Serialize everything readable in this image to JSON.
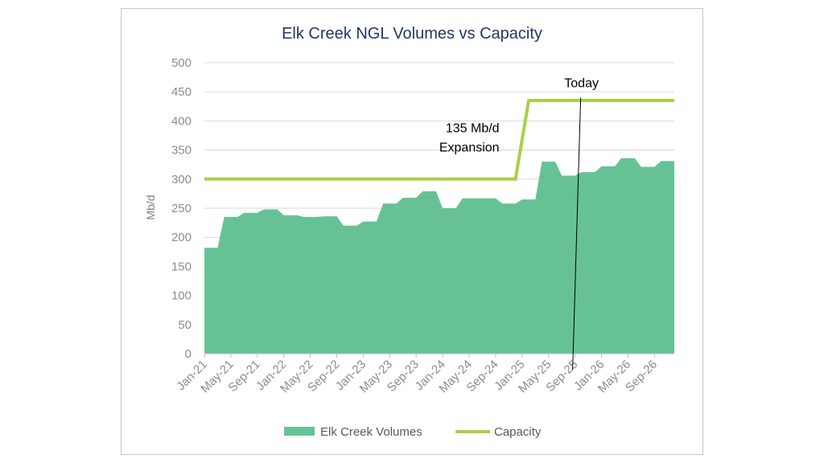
{
  "chart_data": {
    "type": "area",
    "title": "Elk Creek NGL Volumes vs Capacity",
    "ylabel": "Mb/d",
    "xlabel": "",
    "ylim": [
      0,
      500
    ],
    "yticks": [
      "0",
      "50",
      "100",
      "150",
      "200",
      "250",
      "300",
      "350",
      "400",
      "450",
      "500"
    ],
    "xtick_labels": [
      "Jan-21",
      "May-21",
      "Sep-21",
      "Jan-22",
      "May-22",
      "Sep-22",
      "Jan-23",
      "May-23",
      "Sep-23",
      "Jan-24",
      "May-24",
      "Sep-24",
      "Jan-25",
      "May-25",
      "Sep-25",
      "Jan-26",
      "May-26",
      "Sep-26"
    ],
    "grid": true,
    "legend_position": "bottom",
    "series": [
      {
        "name": "Elk Creek Volumes",
        "type": "area",
        "color": "#66c295",
        "x": [
          "Jan-21",
          "Feb-21",
          "Mar-21",
          "Apr-21",
          "May-21",
          "Jun-21",
          "Jul-21",
          "Aug-21",
          "Sep-21",
          "Oct-21",
          "Nov-21",
          "Dec-21",
          "Jan-22",
          "Feb-22",
          "Mar-22",
          "Apr-22",
          "May-22",
          "Jun-22",
          "Jul-22",
          "Aug-22",
          "Sep-22",
          "Oct-22",
          "Nov-22",
          "Dec-22",
          "Jan-23",
          "Feb-23",
          "Mar-23",
          "Apr-23",
          "May-23",
          "Jun-23",
          "Jul-23",
          "Aug-23",
          "Sep-23",
          "Oct-23",
          "Nov-23",
          "Dec-23",
          "Jan-24",
          "Feb-24",
          "Mar-24",
          "Apr-24",
          "May-24",
          "Jun-24",
          "Jul-24",
          "Aug-24",
          "Sep-24",
          "Oct-24",
          "Nov-24",
          "Dec-24",
          "Jan-25",
          "Feb-25",
          "Mar-25",
          "Apr-25",
          "May-25",
          "Jun-25",
          "Jul-25",
          "Aug-25",
          "Sep-25",
          "Oct-25",
          "Nov-25",
          "Dec-25",
          "Jan-26",
          "Feb-26",
          "Mar-26",
          "Apr-26",
          "May-26",
          "Jun-26",
          "Jul-26",
          "Aug-26",
          "Sep-26",
          "Oct-26",
          "Nov-26",
          "Dec-26"
        ],
        "values": [
          182,
          182,
          182,
          235,
          235,
          235,
          242,
          242,
          242,
          248,
          248,
          248,
          238,
          238,
          238,
          235,
          235,
          235,
          236,
          236,
          236,
          220,
          220,
          220,
          227,
          227,
          227,
          258,
          258,
          258,
          268,
          268,
          268,
          279,
          279,
          279,
          250,
          250,
          250,
          267,
          267,
          267,
          267,
          267,
          267,
          258,
          258,
          258,
          265,
          265,
          265,
          330,
          330,
          330,
          306,
          306,
          306,
          312,
          312,
          312,
          322,
          322,
          322,
          336,
          336,
          336,
          321,
          321,
          321,
          331,
          331,
          331
        ]
      },
      {
        "name": "Capacity",
        "type": "line",
        "color": "#a9d046",
        "x": [
          "Jan-21",
          "Dec-24",
          "Feb-25",
          "Dec-26"
        ],
        "values": [
          300,
          300,
          435,
          435
        ]
      }
    ],
    "annotations": [
      {
        "text_lines": [
          "135 Mb/d",
          "Expansion"
        ],
        "x": "Dec-24",
        "y": 400
      },
      {
        "text": "Today",
        "x": "Sep-25",
        "y": 465
      }
    ]
  }
}
